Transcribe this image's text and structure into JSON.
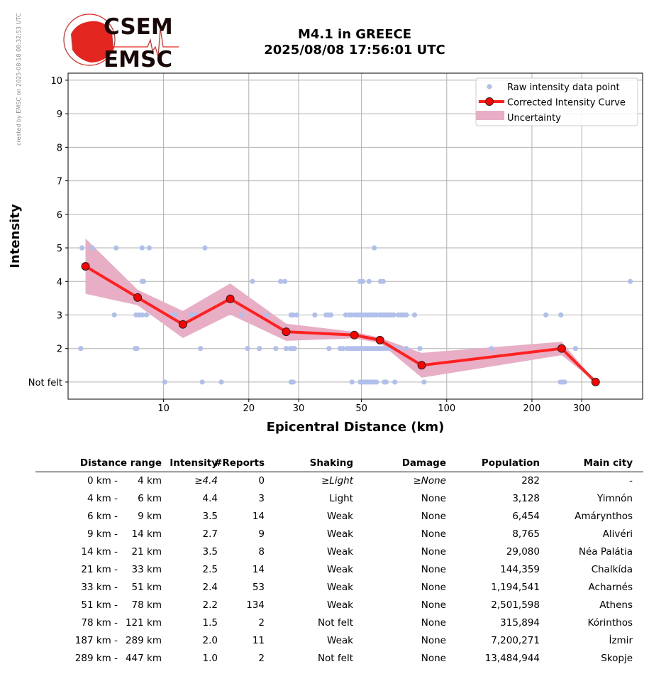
{
  "watermark": "created by EMSC on 2025-08-18 08:32:53 UTC",
  "logo": {
    "top": "CSEM",
    "bottom": "EMSC"
  },
  "title": {
    "line1": "M4.1 in GREECE",
    "line2": "2025/08/08 17:56:01 UTC"
  },
  "colors": {
    "raw": "#b0c0eb",
    "curve": "#ff2020",
    "band": "#e8aec5",
    "marker": "#ff0000"
  },
  "chart_data": {
    "type": "line",
    "xlabel": "Epicentral Distance (km)",
    "ylabel": "Intensity",
    "xscale": "log",
    "xlim": [
      4.6,
      492
    ],
    "ylim": [
      0.49,
      10.21
    ],
    "xticks": [
      10,
      20,
      30,
      50,
      100,
      200,
      300
    ],
    "yticks": [
      {
        "v": 1,
        "label": "Not felt"
      },
      {
        "v": 2,
        "label": "2"
      },
      {
        "v": 3,
        "label": "3"
      },
      {
        "v": 4,
        "label": "4"
      },
      {
        "v": 5,
        "label": "5"
      },
      {
        "v": 6,
        "label": "6"
      },
      {
        "v": 7,
        "label": "7"
      },
      {
        "v": 8,
        "label": "8"
      },
      {
        "v": 9,
        "label": "9"
      },
      {
        "v": 10,
        "label": "10"
      }
    ],
    "grid": true,
    "legend_position": "top-right",
    "legend": [
      "Raw intensity data point",
      "Corrected Intensity Curve",
      "Uncertainty"
    ],
    "curve": {
      "x": [
        5.3,
        8.1,
        11.7,
        17.2,
        27.1,
        47.2,
        58.1,
        81.6,
        254.7,
        335.7
      ],
      "y": [
        4.45,
        3.52,
        2.72,
        3.48,
        2.5,
        2.4,
        2.25,
        1.5,
        2.0,
        1.0
      ],
      "upper": [
        5.28,
        3.75,
        3.12,
        3.94,
        2.74,
        2.5,
        2.32,
        1.87,
        2.2,
        1.0
      ],
      "lower": [
        3.63,
        3.29,
        2.31,
        3.01,
        2.23,
        2.3,
        2.17,
        1.13,
        1.8,
        1.0
      ]
    },
    "raw_points": [
      [
        5.15,
        5
      ],
      [
        5.6,
        5
      ],
      [
        6.8,
        5
      ],
      [
        8.4,
        5
      ],
      [
        8.9,
        5
      ],
      [
        14.0,
        5
      ],
      [
        55.5,
        5
      ],
      [
        8.4,
        4
      ],
      [
        8.5,
        4
      ],
      [
        20.6,
        4
      ],
      [
        25.9,
        4
      ],
      [
        26.8,
        4
      ],
      [
        49.4,
        4
      ],
      [
        50.5,
        4
      ],
      [
        53.2,
        4
      ],
      [
        58.4,
        4
      ],
      [
        59.7,
        4
      ],
      [
        445,
        4
      ],
      [
        6.7,
        3
      ],
      [
        8.0,
        3
      ],
      [
        8.2,
        3
      ],
      [
        8.4,
        3
      ],
      [
        8.7,
        3
      ],
      [
        10.7,
        3
      ],
      [
        11.0,
        3
      ],
      [
        12.5,
        3
      ],
      [
        12.8,
        3
      ],
      [
        13.2,
        3
      ],
      [
        18.9,
        3
      ],
      [
        23.2,
        3
      ],
      [
        28.2,
        3
      ],
      [
        28.6,
        3
      ],
      [
        29.5,
        3
      ],
      [
        34.2,
        3
      ],
      [
        37.5,
        3
      ],
      [
        38.2,
        3
      ],
      [
        39.0,
        3
      ],
      [
        44,
        3
      ],
      [
        45.3,
        3
      ],
      [
        46.2,
        3
      ],
      [
        47.5,
        3
      ],
      [
        48.5,
        3
      ],
      [
        49.5,
        3
      ],
      [
        50.5,
        3
      ],
      [
        51.5,
        3
      ],
      [
        52.5,
        3
      ],
      [
        53.5,
        3
      ],
      [
        54.5,
        3
      ],
      [
        55.5,
        3
      ],
      [
        56.5,
        3
      ],
      [
        58,
        3
      ],
      [
        59,
        3
      ],
      [
        60,
        3
      ],
      [
        61,
        3
      ],
      [
        62,
        3
      ],
      [
        63,
        3
      ],
      [
        64,
        3
      ],
      [
        65,
        3
      ],
      [
        67.5,
        3
      ],
      [
        69,
        3
      ],
      [
        70.5,
        3
      ],
      [
        72,
        3
      ],
      [
        77,
        3
      ],
      [
        224,
        3
      ],
      [
        253,
        3
      ],
      [
        5.1,
        2
      ],
      [
        7.95,
        2
      ],
      [
        8.05,
        2
      ],
      [
        13.5,
        2
      ],
      [
        19.8,
        2
      ],
      [
        21.8,
        2
      ],
      [
        24.9,
        2
      ],
      [
        27.1,
        2
      ],
      [
        28.0,
        2
      ],
      [
        28.5,
        2
      ],
      [
        29.0,
        2
      ],
      [
        38.4,
        2
      ],
      [
        42,
        2
      ],
      [
        43,
        2
      ],
      [
        44.5,
        2
      ],
      [
        45.5,
        2
      ],
      [
        46.5,
        2
      ],
      [
        47.5,
        2
      ],
      [
        48.5,
        2
      ],
      [
        49.5,
        2
      ],
      [
        50.5,
        2
      ],
      [
        51.5,
        2
      ],
      [
        52.5,
        2
      ],
      [
        53.5,
        2
      ],
      [
        54.5,
        2
      ],
      [
        55.5,
        2
      ],
      [
        56.5,
        2
      ],
      [
        57.5,
        2
      ],
      [
        58.5,
        2
      ],
      [
        59.5,
        2
      ],
      [
        61,
        2
      ],
      [
        62.5,
        2
      ],
      [
        64,
        2
      ],
      [
        66,
        2
      ],
      [
        68,
        2
      ],
      [
        72,
        2
      ],
      [
        80.4,
        2
      ],
      [
        144,
        2
      ],
      [
        253,
        2
      ],
      [
        285,
        2
      ],
      [
        10.1,
        1
      ],
      [
        13.7,
        1
      ],
      [
        16.0,
        1
      ],
      [
        28.2,
        1
      ],
      [
        28.7,
        1
      ],
      [
        46.3,
        1
      ],
      [
        49.5,
        1
      ],
      [
        50.5,
        1
      ],
      [
        51.5,
        1
      ],
      [
        52.5,
        1
      ],
      [
        53.5,
        1
      ],
      [
        54.5,
        1
      ],
      [
        55.5,
        1
      ],
      [
        56.5,
        1
      ],
      [
        60.2,
        1
      ],
      [
        61.1,
        1
      ],
      [
        65.6,
        1
      ],
      [
        83.2,
        1
      ],
      [
        252,
        1
      ],
      [
        256,
        1
      ],
      [
        261,
        1
      ],
      [
        336,
        1
      ]
    ]
  },
  "table": {
    "headers": [
      "Distance range",
      "Intensity",
      "#Reports",
      "Shaking",
      "Damage",
      "Population",
      "Main city"
    ],
    "rows": [
      {
        "from": "0 km -",
        "to": "4 km",
        "intensity": "≥4.4",
        "reports": "0",
        "shaking": "≥Light",
        "damage": "≥None",
        "population": "282",
        "city": "-",
        "italic": true
      },
      {
        "from": "4 km -",
        "to": "6 km",
        "intensity": "4.4",
        "reports": "3",
        "shaking": "Light",
        "damage": "None",
        "population": "3,128",
        "city": "Yimnón"
      },
      {
        "from": "6 km -",
        "to": "9 km",
        "intensity": "3.5",
        "reports": "14",
        "shaking": "Weak",
        "damage": "None",
        "population": "6,454",
        "city": "Amárynthos"
      },
      {
        "from": "9 km -",
        "to": "14 km",
        "intensity": "2.7",
        "reports": "9",
        "shaking": "Weak",
        "damage": "None",
        "population": "8,765",
        "city": "Alivéri"
      },
      {
        "from": "14 km -",
        "to": "21 km",
        "intensity": "3.5",
        "reports": "8",
        "shaking": "Weak",
        "damage": "None",
        "population": "29,080",
        "city": "Néa Palátia"
      },
      {
        "from": "21 km -",
        "to": "33 km",
        "intensity": "2.5",
        "reports": "14",
        "shaking": "Weak",
        "damage": "None",
        "population": "144,359",
        "city": "Chalkída"
      },
      {
        "from": "33 km -",
        "to": "51 km",
        "intensity": "2.4",
        "reports": "53",
        "shaking": "Weak",
        "damage": "None",
        "population": "1,194,541",
        "city": "Acharnés"
      },
      {
        "from": "51 km -",
        "to": "78 km",
        "intensity": "2.2",
        "reports": "134",
        "shaking": "Weak",
        "damage": "None",
        "population": "2,501,598",
        "city": "Athens"
      },
      {
        "from": "78 km -",
        "to": "121 km",
        "intensity": "1.5",
        "reports": "2",
        "shaking": "Not felt",
        "damage": "None",
        "population": "315,894",
        "city": "Kórinthos"
      },
      {
        "from": "187 km -",
        "to": "289 km",
        "intensity": "2.0",
        "reports": "11",
        "shaking": "Weak",
        "damage": "None",
        "population": "7,200,271",
        "city": "İzmir"
      },
      {
        "from": "289 km -",
        "to": "447 km",
        "intensity": "1.0",
        "reports": "2",
        "shaking": "Not felt",
        "damage": "None",
        "population": "13,484,944",
        "city": "Skopje"
      }
    ]
  }
}
